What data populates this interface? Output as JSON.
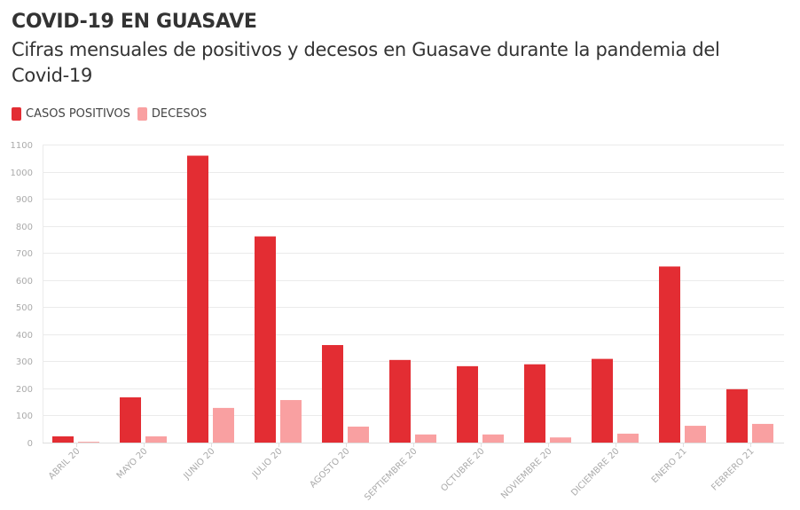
{
  "header": {
    "title": "COVID-19 EN GUASAVE",
    "subtitle": "Cifras mensuales de positivos y decesos en Guasave durante la pandemia del Covid-19"
  },
  "legend": [
    {
      "label": "CASOS POSITIVOS",
      "color": "#e32d33"
    },
    {
      "label": "DECESOS",
      "color": "#f9a0a1"
    }
  ],
  "chart_data": {
    "type": "bar",
    "title": "COVID-19 EN GUASAVE",
    "subtitle": "Cifras mensuales de positivos y decesos en Guasave durante la pandemia del Covid-19",
    "xlabel": "",
    "ylabel": "",
    "ylim": [
      0,
      1100
    ],
    "yticks": [
      0,
      100,
      200,
      300,
      400,
      500,
      600,
      700,
      800,
      900,
      1000,
      1100
    ],
    "grid": true,
    "legend_position": "top-left",
    "categories": [
      "ABRIL 20",
      "MAYO 20",
      "JUNIO 20",
      "JULIO 20",
      "AGOSTO 20",
      "SEPTIEMBRE 20",
      "OCTUBRE 20",
      "NOVIEMBRE 20",
      "DICIEMBRE 20",
      "ENERO 21",
      "FEBRERO 21"
    ],
    "series": [
      {
        "name": "CASOS POSITIVOS",
        "color": "#e32d33",
        "values": [
          23,
          167,
          1059,
          761,
          360,
          305,
          282,
          289,
          309,
          650,
          197
        ]
      },
      {
        "name": "DECESOS",
        "color": "#f9a0a1",
        "values": [
          3,
          23,
          128,
          157,
          59,
          30,
          30,
          19,
          33,
          62,
          69
        ]
      }
    ]
  }
}
